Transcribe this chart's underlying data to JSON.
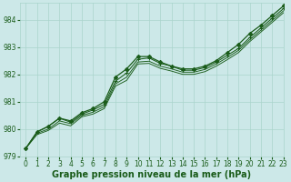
{
  "xlabel": "Graphe pression niveau de la mer (hPa)",
  "ylim": [
    979,
    984.6
  ],
  "xlim": [
    -0.5,
    23
  ],
  "yticks": [
    979,
    980,
    981,
    982,
    983,
    984
  ],
  "xticks": [
    0,
    1,
    2,
    3,
    4,
    5,
    6,
    7,
    8,
    9,
    10,
    11,
    12,
    13,
    14,
    15,
    16,
    17,
    18,
    19,
    20,
    21,
    22,
    23
  ],
  "bg_color": "#cce8e8",
  "grid_color": "#aad4cc",
  "line_color": "#1a5c1a",
  "series": [
    {
      "x": [
        0,
        1,
        2,
        3,
        4,
        5,
        6,
        7,
        8,
        9,
        10,
        11,
        12,
        13,
        14,
        15,
        16,
        17,
        18,
        19,
        20,
        21,
        22,
        23
      ],
      "y": [
        979.3,
        979.9,
        980.1,
        980.4,
        980.3,
        980.6,
        980.75,
        981.0,
        981.9,
        982.2,
        982.65,
        982.65,
        982.45,
        982.3,
        982.2,
        982.2,
        982.3,
        982.5,
        982.8,
        983.1,
        983.5,
        983.8,
        984.15,
        984.5
      ],
      "marker": "D",
      "markersize": 2.2,
      "linewidth": 0.9,
      "zorder": 5
    },
    {
      "x": [
        0,
        1,
        2,
        3,
        4,
        5,
        6,
        7,
        8,
        9,
        10,
        11,
        12,
        13,
        14,
        15,
        16,
        17,
        18,
        19,
        20,
        21,
        22,
        23
      ],
      "y": [
        979.3,
        979.9,
        980.1,
        980.4,
        980.25,
        980.55,
        980.7,
        980.9,
        981.75,
        982.05,
        982.55,
        982.6,
        982.4,
        982.3,
        982.15,
        982.15,
        982.25,
        982.45,
        982.7,
        982.95,
        983.35,
        983.7,
        984.05,
        984.4
      ],
      "marker": "+",
      "markersize": 3.0,
      "linewidth": 0.75,
      "zorder": 4
    },
    {
      "x": [
        0,
        1,
        2,
        3,
        4,
        5,
        6,
        7,
        8,
        9,
        10,
        11,
        12,
        13,
        14,
        15,
        16,
        17,
        18,
        19,
        20,
        21,
        22,
        23
      ],
      "y": [
        979.3,
        979.85,
        980.0,
        980.3,
        980.2,
        980.5,
        980.62,
        980.82,
        981.65,
        981.9,
        982.45,
        982.48,
        982.3,
        982.2,
        982.08,
        982.08,
        982.18,
        982.38,
        982.62,
        982.88,
        983.27,
        983.62,
        983.97,
        984.32
      ],
      "marker": null,
      "markersize": 0,
      "linewidth": 0.65,
      "zorder": 3
    },
    {
      "x": [
        0,
        1,
        2,
        3,
        4,
        5,
        6,
        7,
        8,
        9,
        10,
        11,
        12,
        13,
        14,
        15,
        16,
        17,
        18,
        19,
        20,
        21,
        22,
        23
      ],
      "y": [
        979.3,
        979.8,
        979.95,
        980.22,
        980.12,
        980.45,
        980.55,
        980.75,
        981.57,
        981.78,
        982.38,
        982.4,
        982.22,
        982.12,
        982.0,
        982.0,
        982.1,
        982.3,
        982.54,
        982.8,
        983.2,
        983.55,
        983.9,
        984.25
      ],
      "marker": null,
      "markersize": 0,
      "linewidth": 0.65,
      "zorder": 2
    }
  ],
  "font_color": "#1a5c1a",
  "tick_fontsize": 5.5,
  "label_fontsize": 7.0
}
